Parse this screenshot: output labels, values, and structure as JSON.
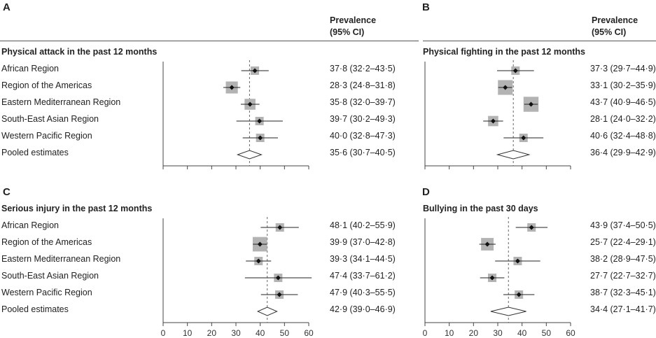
{
  "header": {
    "prevalence_line1": "Prevalence",
    "prevalence_line2": "(95% CI)"
  },
  "panels": [
    {
      "letter": "A",
      "title": "Physical attack in the past 12 months",
      "axis_max": 60,
      "pooled_mean": 35.6,
      "rows": [
        {
          "label": "African Region",
          "mean": 37.8,
          "lo": 32.2,
          "hi": 43.5,
          "text": "37·8 (32·2–43·5)"
        },
        {
          "label": "Region of the Americas",
          "mean": 28.3,
          "lo": 24.8,
          "hi": 31.8,
          "text": "28·3 (24·8–31·8)"
        },
        {
          "label": "Eastern Mediterranean Region",
          "mean": 35.8,
          "lo": 32.0,
          "hi": 39.7,
          "text": "35·8 (32·0–39·7)"
        },
        {
          "label": "South-East Asian Region",
          "mean": 39.7,
          "lo": 30.2,
          "hi": 49.3,
          "text": "39·7 (30·2–49·3)"
        },
        {
          "label": "Western Pacific Region",
          "mean": 40.0,
          "lo": 32.8,
          "hi": 47.3,
          "text": "40·0 (32·8–47·3)"
        },
        {
          "label": "Pooled estimates",
          "mean": 35.6,
          "lo": 30.7,
          "hi": 40.5,
          "text": "35·6 (30·7–40·5)",
          "pooled": true
        }
      ]
    },
    {
      "letter": "B",
      "title": "Physical fighting in the past 12 months",
      "axis_max": 60,
      "pooled_mean": 36.4,
      "rows": [
        {
          "mean": 37.3,
          "lo": 29.7,
          "hi": 44.9,
          "text": "37·3 (29·7–44·9)"
        },
        {
          "mean": 33.1,
          "lo": 30.2,
          "hi": 35.9,
          "text": "33·1 (30·2–35·9)"
        },
        {
          "mean": 43.7,
          "lo": 40.9,
          "hi": 46.5,
          "text": "43·7 (40·9–46·5)"
        },
        {
          "mean": 28.1,
          "lo": 24.0,
          "hi": 32.2,
          "text": "28·1 (24·0–32·2)"
        },
        {
          "mean": 40.6,
          "lo": 32.4,
          "hi": 48.8,
          "text": "40·6 (32·4–48·8)"
        },
        {
          "mean": 36.4,
          "lo": 29.9,
          "hi": 42.9,
          "text": "36·4 (29·9–42·9)",
          "pooled": true
        }
      ]
    },
    {
      "letter": "C",
      "title": "Serious injury in the past 12 months",
      "axis_max": 60,
      "pooled_mean": 42.9,
      "rows": [
        {
          "label": "African Region",
          "mean": 48.1,
          "lo": 40.2,
          "hi": 55.9,
          "text": "48·1 (40·2–55·9)"
        },
        {
          "label": "Region of the Americas",
          "mean": 39.9,
          "lo": 37.0,
          "hi": 42.8,
          "text": "39·9 (37·0–42·8)"
        },
        {
          "label": "Eastern Mediterranean Region",
          "mean": 39.3,
          "lo": 34.1,
          "hi": 44.5,
          "text": "39·3 (34·1–44·5)"
        },
        {
          "label": "South-East Asian Region",
          "mean": 47.4,
          "lo": 33.7,
          "hi": 61.2,
          "text": "47·4 (33·7–61·2)"
        },
        {
          "label": "Western Pacific Region",
          "mean": 47.9,
          "lo": 40.3,
          "hi": 55.5,
          "text": "47·9 (40·3–55·5)"
        },
        {
          "label": "Pooled estimates",
          "mean": 42.9,
          "lo": 39.0,
          "hi": 46.9,
          "text": "42·9 (39·0–46·9)",
          "pooled": true
        }
      ]
    },
    {
      "letter": "D",
      "title": "Bullying in the past 30 days",
      "axis_max": 60,
      "pooled_mean": 34.4,
      "rows": [
        {
          "mean": 43.9,
          "lo": 37.4,
          "hi": 50.5,
          "text": "43·9 (37·4–50·5)"
        },
        {
          "mean": 25.7,
          "lo": 22.4,
          "hi": 29.1,
          "text": "25·7 (22·4–29·1)"
        },
        {
          "mean": 38.2,
          "lo": 28.9,
          "hi": 47.5,
          "text": "38·2 (28·9–47·5)"
        },
        {
          "mean": 27.7,
          "lo": 22.7,
          "hi": 32.7,
          "text": "27·7 (22·7–32·7)"
        },
        {
          "mean": 38.7,
          "lo": 32.3,
          "hi": 45.1,
          "text": "38·7 (32·3–45·1)"
        },
        {
          "mean": 34.4,
          "lo": 27.1,
          "hi": 41.7,
          "text": "34·4 (27·1–41·7)",
          "pooled": true
        }
      ]
    }
  ],
  "chart_data": [
    {
      "type": "forest",
      "title": "Physical attack in the past 12 months",
      "xlim": [
        0,
        60
      ],
      "categories": [
        "African Region",
        "Region of the Americas",
        "Eastern Mediterranean Region",
        "South-East Asian Region",
        "Western Pacific Region",
        "Pooled estimates"
      ],
      "values": [
        37.8,
        28.3,
        35.8,
        39.7,
        40.0,
        35.6
      ],
      "ci_low": [
        32.2,
        24.8,
        32.0,
        30.2,
        32.8,
        30.7
      ],
      "ci_high": [
        43.5,
        31.8,
        39.7,
        49.3,
        47.3,
        40.5
      ]
    },
    {
      "type": "forest",
      "title": "Physical fighting in the past 12 months",
      "xlim": [
        0,
        60
      ],
      "values": [
        37.3,
        33.1,
        43.7,
        28.1,
        40.6,
        36.4
      ],
      "ci_low": [
        29.7,
        30.2,
        40.9,
        24.0,
        32.4,
        29.9
      ],
      "ci_high": [
        44.9,
        35.9,
        46.5,
        32.2,
        48.8,
        42.9
      ]
    },
    {
      "type": "forest",
      "title": "Serious injury in the past 12 months",
      "xlim": [
        0,
        60
      ],
      "xticks": [
        0,
        10,
        20,
        30,
        40,
        50,
        60
      ],
      "values": [
        48.1,
        39.9,
        39.3,
        47.4,
        47.9,
        42.9
      ],
      "ci_low": [
        40.2,
        37.0,
        34.1,
        33.7,
        40.3,
        39.0
      ],
      "ci_high": [
        55.9,
        42.8,
        44.5,
        61.2,
        55.5,
        46.9
      ]
    },
    {
      "type": "forest",
      "title": "Bullying in the past 30 days",
      "xlim": [
        0,
        60
      ],
      "xticks": [
        0,
        10,
        20,
        30,
        40,
        50,
        60
      ],
      "values": [
        43.9,
        25.7,
        38.2,
        27.7,
        38.7,
        34.4
      ],
      "ci_low": [
        37.4,
        22.4,
        28.9,
        22.7,
        32.3,
        27.1
      ],
      "ci_high": [
        50.5,
        29.1,
        47.5,
        32.7,
        45.1,
        41.7
      ]
    }
  ]
}
